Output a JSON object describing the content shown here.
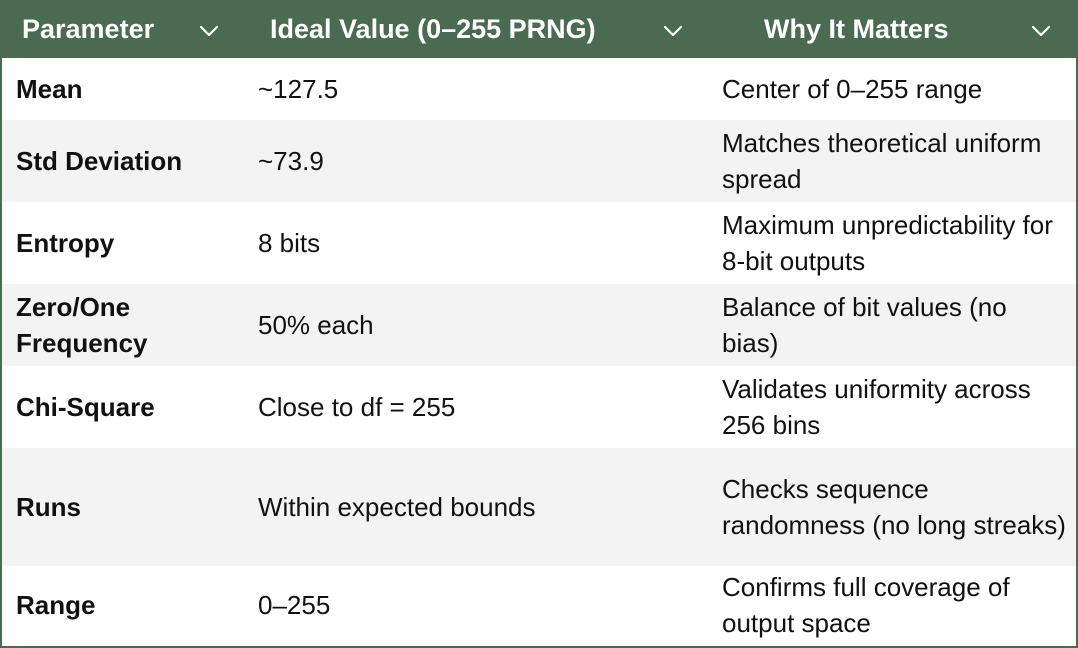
{
  "table": {
    "headers": {
      "parameter": "Parameter",
      "ideal": "Ideal Value (0–255 PRNG)",
      "why": "Why It Matters"
    },
    "header_icon": "chevron-down-icon",
    "colors": {
      "header_bg": "#4a6b52",
      "header_text": "#ffffff",
      "stripe": "#f3f3f3"
    },
    "rows": [
      {
        "parameter": "Mean",
        "ideal": "~127.5",
        "why": "Center of 0–255 range"
      },
      {
        "parameter": "Std Deviation",
        "ideal": "~73.9",
        "why": "Matches theoretical uniform spread"
      },
      {
        "parameter": "Entropy",
        "ideal": "8 bits",
        "why": "Maximum unpredictability for 8-bit outputs"
      },
      {
        "parameter": "Zero/One Frequency",
        "ideal": "50% each",
        "why": "Balance of bit values (no bias)"
      },
      {
        "parameter": "Chi-Square",
        "ideal": "Close to df = 255",
        "why": "Validates uniformity across 256 bins"
      },
      {
        "parameter": "Runs",
        "ideal": "Within expected bounds",
        "why": "Checks sequence randomness (no long streaks)"
      },
      {
        "parameter": "Range",
        "ideal": "0–255",
        "why": "Confirms full coverage of output space"
      }
    ]
  }
}
